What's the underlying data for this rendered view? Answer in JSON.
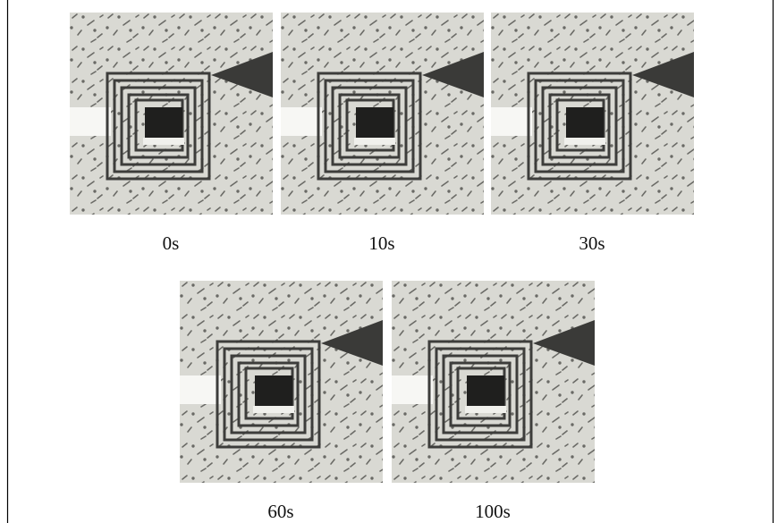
{
  "panels": [
    {
      "label": "0s"
    },
    {
      "label": "10s"
    },
    {
      "label": "30s"
    },
    {
      "label": "60s"
    },
    {
      "label": "100s"
    }
  ]
}
